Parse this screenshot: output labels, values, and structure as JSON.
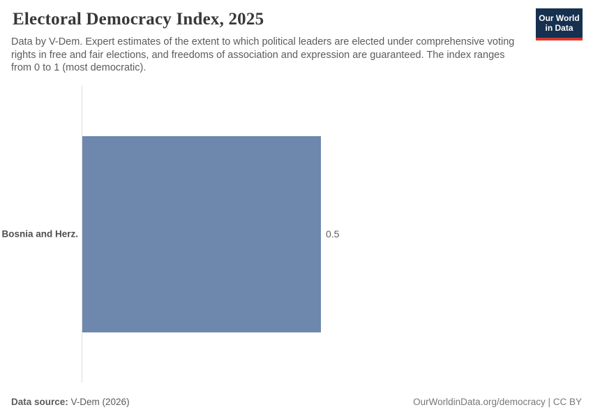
{
  "header": {
    "title": "Electoral Democracy Index, 2025",
    "subtitle": "Data by V-Dem. Expert estimates of the extent to which political leaders are elected under comprehensive voting rights in free and fair elections, and freedoms of association and expression are guaranteed. The index ranges from 0 to 1 (most democratic).",
    "logo": {
      "line1": "Our World",
      "line2": "in Data"
    }
  },
  "chart_data": {
    "type": "bar",
    "orientation": "horizontal",
    "title": "Electoral Democracy Index, 2025",
    "categories": [
      "Bosnia and Herz."
    ],
    "values": [
      0.5
    ],
    "value_labels": [
      "0.5"
    ],
    "xlim": [
      0,
      1
    ],
    "grid": false,
    "legend": false,
    "bar_color": "#6d87ad",
    "axis_color": "#dcdcdc"
  },
  "footer": {
    "source_label": "Data source:",
    "source_value": " V-Dem (2026)",
    "attribution": "OurWorldinData.org/democracy | CC BY"
  }
}
